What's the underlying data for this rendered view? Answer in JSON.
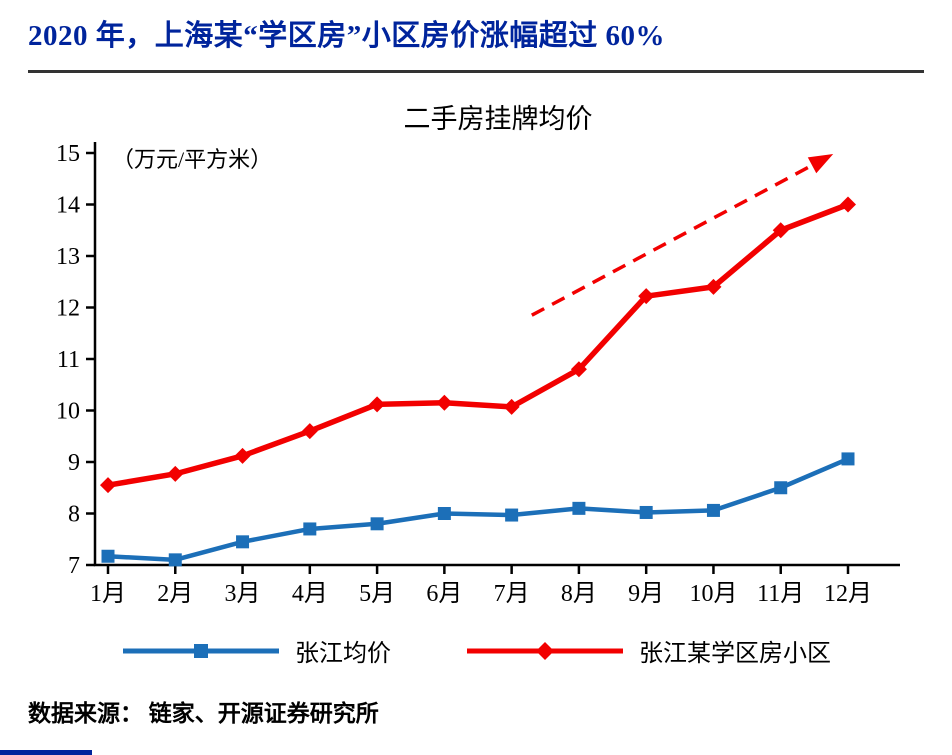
{
  "header": {
    "title": "2020 年，上海某“学区房”小区房价涨幅超过 60%"
  },
  "footer": {
    "source": "数据来源： 链家、开源证券研究所"
  },
  "colors": {
    "title": "#00249c",
    "rule": "#333333",
    "axis": "#000000",
    "blue": "#1c6fb8",
    "red": "#f20000",
    "footer_rule": "#00249c"
  },
  "chart_data": {
    "type": "line",
    "title": "二手房挂牌均价",
    "unit_label": "（万元/平方米）",
    "categories": [
      "1月",
      "2月",
      "3月",
      "4月",
      "5月",
      "6月",
      "7月",
      "8月",
      "9月",
      "10月",
      "11月",
      "12月"
    ],
    "y_ticks": [
      7,
      8,
      9,
      10,
      11,
      12,
      13,
      14,
      15
    ],
    "ylim": [
      7,
      15
    ],
    "grid": false,
    "legend_position": "bottom",
    "series": [
      {
        "name": "张江均价",
        "color": "#1c6fb8",
        "marker": "square",
        "values": [
          7.17,
          7.1,
          7.45,
          7.7,
          7.8,
          8.0,
          7.97,
          8.1,
          8.02,
          8.06,
          8.5,
          9.06
        ]
      },
      {
        "name": "张江某学区房小区",
        "color": "#f20000",
        "marker": "diamond",
        "values": [
          8.55,
          8.77,
          9.12,
          9.6,
          10.12,
          10.15,
          10.07,
          10.8,
          12.22,
          12.4,
          13.5,
          14.0
        ]
      }
    ],
    "annotation": {
      "type": "dashed-arrow",
      "color": "#f20000",
      "from": {
        "x": 6.3,
        "y": 11.85
      },
      "to": {
        "x": 10.78,
        "y": 14.98
      }
    }
  }
}
